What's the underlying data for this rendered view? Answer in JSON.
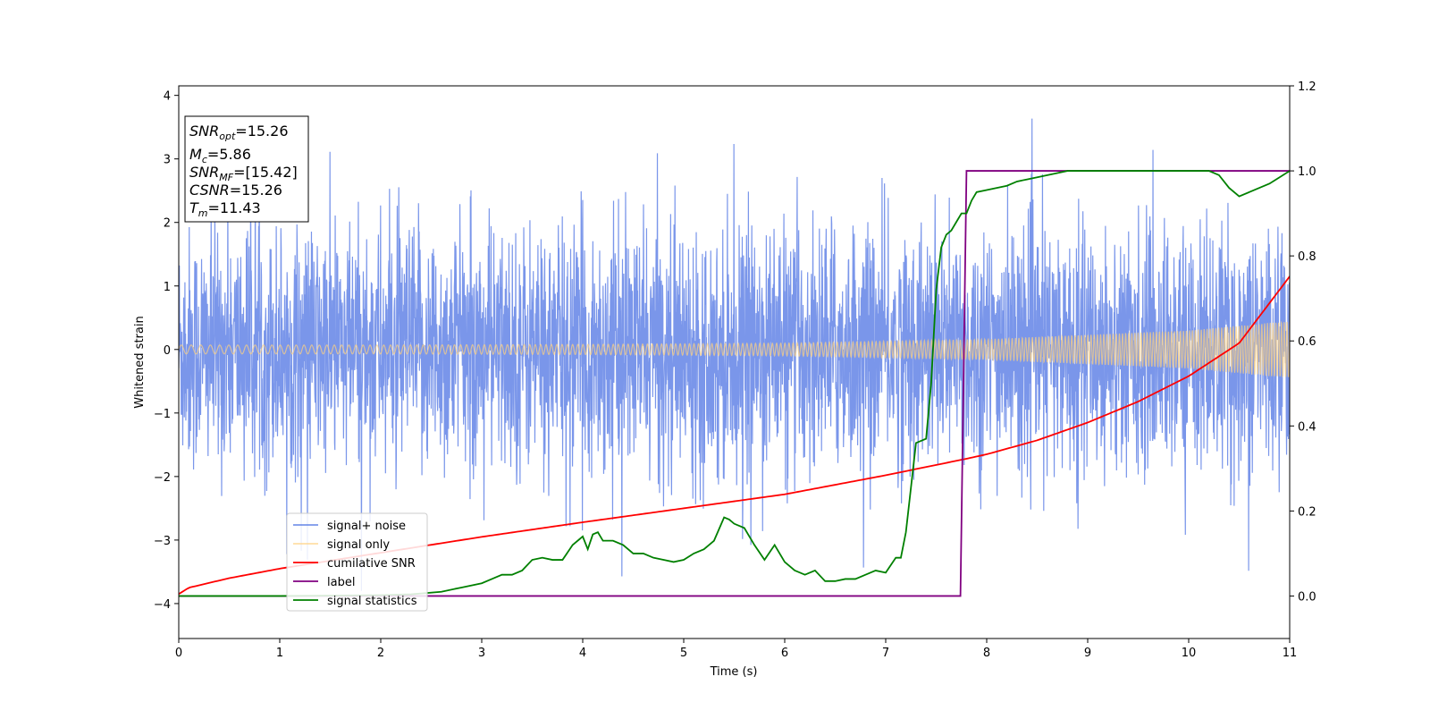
{
  "chart_data": {
    "type": "line",
    "xlabel": "Time (s)",
    "ylabel": "Whitened strain",
    "xlim": [
      0,
      11
    ],
    "ylim": [
      -4.55,
      4.15
    ],
    "y2lim": [
      -0.1,
      1.2
    ],
    "x_ticks": [
      "0",
      "1",
      "2",
      "3",
      "4",
      "5",
      "6",
      "7",
      "8",
      "9",
      "10",
      "11"
    ],
    "y_ticks": [
      "−4",
      "−3",
      "−2",
      "−1",
      "0",
      "1",
      "2",
      "3",
      "4"
    ],
    "y2_ticks": [
      "0.0",
      "0.2",
      "0.4",
      "0.6",
      "0.8",
      "1.0",
      "1.2"
    ],
    "grid": false,
    "legend_position": "lower-left",
    "info_box": {
      "lines": [
        {
          "sym": "SNR",
          "sub": "opt",
          "value": "=15.26"
        },
        {
          "sym": "M",
          "sub": "c",
          "value": "=5.86"
        },
        {
          "sym": "SNR",
          "sub": "MF",
          "value": "=[15.42]"
        },
        {
          "sym": "CSNR",
          "sub": "",
          "value": "=15.26"
        },
        {
          "sym": "T",
          "sub": "m",
          "value": "=11.43"
        }
      ]
    },
    "series": [
      {
        "name": "signal+ noise",
        "color": "#4169e1",
        "axis": "left",
        "description_note": "whitened noisy strain, approx. ±1.6 std band with spikes up to ±3.8",
        "envelope": {
          "x": [
            0,
            11
          ],
          "typical_amplitude": 1.8,
          "max_amplitude": 3.8
        }
      },
      {
        "name": "signal only",
        "color": "#ffd27f",
        "axis": "left",
        "chirp_amplitude": {
          "x": [
            0,
            2,
            4,
            6,
            8,
            10,
            11
          ],
          "y": [
            0.07,
            0.07,
            0.08,
            0.1,
            0.16,
            0.3,
            0.45
          ]
        }
      },
      {
        "name": "cumilative SNR",
        "color": "#ff0000",
        "axis": "left",
        "x": [
          0,
          0.1,
          0.5,
          1,
          2,
          3,
          4,
          5,
          6,
          7,
          7.8,
          8,
          8.5,
          9,
          9.5,
          10,
          10.5,
          11
        ],
        "y": [
          -3.85,
          -3.75,
          -3.6,
          -3.45,
          -3.2,
          -2.95,
          -2.72,
          -2.5,
          -2.28,
          -1.98,
          -1.72,
          -1.65,
          -1.43,
          -1.15,
          -0.82,
          -0.42,
          0.1,
          1.15
        ]
      },
      {
        "name": "label",
        "color": "#800080",
        "axis": "right",
        "x": [
          0,
          7.74,
          7.8,
          11
        ],
        "y": [
          0,
          0,
          1,
          1
        ]
      },
      {
        "name": "signal statistics",
        "color": "#008000",
        "axis": "right",
        "x": [
          0,
          0.5,
          1,
          1.5,
          2,
          2.3,
          2.6,
          2.8,
          3,
          3.1,
          3.2,
          3.3,
          3.4,
          3.5,
          3.6,
          3.7,
          3.8,
          3.9,
          4,
          4.05,
          4.1,
          4.15,
          4.2,
          4.3,
          4.4,
          4.5,
          4.6,
          4.7,
          4.8,
          4.9,
          5,
          5.1,
          5.2,
          5.3,
          5.4,
          5.45,
          5.5,
          5.6,
          5.7,
          5.8,
          5.9,
          6,
          6.1,
          6.2,
          6.3,
          6.4,
          6.5,
          6.6,
          6.7,
          6.8,
          6.9,
          7,
          7.1,
          7.15,
          7.2,
          7.3,
          7.4,
          7.45,
          7.5,
          7.55,
          7.6,
          7.65,
          7.7,
          7.75,
          7.8,
          7.85,
          7.9,
          8,
          8.1,
          8.2,
          8.3,
          8.4,
          8.5,
          8.6,
          8.7,
          8.8,
          9,
          9.2,
          9.5,
          9.8,
          10,
          10.2,
          10.3,
          10.4,
          10.5,
          10.6,
          10.7,
          10.8,
          10.9,
          11
        ],
        "y": [
          0,
          0,
          0,
          0.001,
          0.002,
          0.004,
          0.01,
          0.02,
          0.03,
          0.04,
          0.05,
          0.05,
          0.06,
          0.085,
          0.09,
          0.085,
          0.085,
          0.12,
          0.14,
          0.11,
          0.145,
          0.15,
          0.13,
          0.13,
          0.12,
          0.1,
          0.1,
          0.09,
          0.085,
          0.08,
          0.085,
          0.1,
          0.11,
          0.13,
          0.185,
          0.18,
          0.17,
          0.16,
          0.12,
          0.085,
          0.12,
          0.08,
          0.06,
          0.05,
          0.06,
          0.035,
          0.035,
          0.04,
          0.04,
          0.05,
          0.06,
          0.055,
          0.09,
          0.09,
          0.15,
          0.36,
          0.37,
          0.5,
          0.72,
          0.82,
          0.85,
          0.86,
          0.88,
          0.9,
          0.9,
          0.93,
          0.95,
          0.955,
          0.96,
          0.965,
          0.975,
          0.98,
          0.985,
          0.99,
          0.995,
          1.0,
          1.0,
          1.0,
          1.0,
          1.0,
          1.0,
          1.0,
          0.99,
          0.96,
          0.94,
          0.95,
          0.96,
          0.97,
          0.985,
          1.0
        ]
      }
    ],
    "legend": [
      "signal+ noise",
      "signal only",
      "cumilative SNR",
      "label",
      "signal statistics"
    ]
  }
}
